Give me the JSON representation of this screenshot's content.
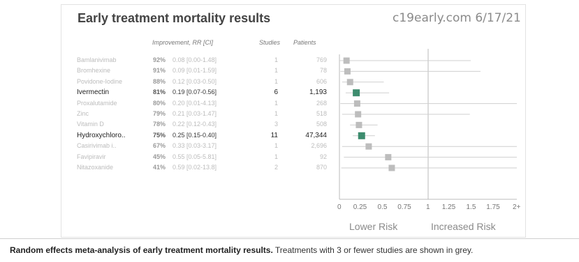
{
  "title": "Early treatment mortality results",
  "source": "c19early.com 6/17/21",
  "headers": {
    "improvement": "Improvement, RR [CI]",
    "studies": "Studies",
    "patients": "Patients"
  },
  "risk_labels": {
    "lower": "Lower Risk",
    "increased": "Increased Risk"
  },
  "caption": {
    "bold": "Random effects meta-analysis of early treatment mortality results.",
    "rest": " Treatments with 3 or fewer studies are shown in grey."
  },
  "colors": {
    "highlight": "#3d8c6e",
    "muted": "#bdbdbd",
    "line": "#cccccc"
  },
  "chart_data": {
    "type": "forest",
    "x_axis": {
      "ticks": [
        "0",
        "0.25",
        "0.5",
        "0.75",
        "1",
        "1.25",
        "1.5",
        "1.75",
        "2+"
      ],
      "range": [
        0,
        2
      ],
      "reference_line": 1
    },
    "rows": [
      {
        "name": "Bamlanivimab",
        "improvement": "92%",
        "rr_text": "0.08 [0.00-1.48]",
        "studies": "1",
        "patients": "769",
        "rr": 0.08,
        "ci_low": 0.0,
        "ci_high": 1.48,
        "highlight": false
      },
      {
        "name": "Bromhexine",
        "improvement": "91%",
        "rr_text": "0.09 [0.01-1.59]",
        "studies": "1",
        "patients": "78",
        "rr": 0.09,
        "ci_low": 0.01,
        "ci_high": 1.59,
        "highlight": false
      },
      {
        "name": "Povidone-Iodine",
        "improvement": "88%",
        "rr_text": "0.12 [0.03-0.50]",
        "studies": "1",
        "patients": "606",
        "rr": 0.12,
        "ci_low": 0.03,
        "ci_high": 0.5,
        "highlight": false
      },
      {
        "name": "Ivermectin",
        "improvement": "81%",
        "rr_text": "0.19 [0.07-0.56]",
        "studies": "6",
        "patients": "1,193",
        "rr": 0.19,
        "ci_low": 0.07,
        "ci_high": 0.56,
        "highlight": true
      },
      {
        "name": "Proxalutamide",
        "improvement": "80%",
        "rr_text": "0.20 [0.01-4.13]",
        "studies": "1",
        "patients": "268",
        "rr": 0.2,
        "ci_low": 0.01,
        "ci_high": 4.13,
        "highlight": false
      },
      {
        "name": "Zinc",
        "improvement": "79%",
        "rr_text": "0.21 [0.03-1.47]",
        "studies": "1",
        "patients": "518",
        "rr": 0.21,
        "ci_low": 0.03,
        "ci_high": 1.47,
        "highlight": false
      },
      {
        "name": "Vitamin D",
        "improvement": "78%",
        "rr_text": "0.22 [0.12-0.43]",
        "studies": "3",
        "patients": "508",
        "rr": 0.22,
        "ci_low": 0.12,
        "ci_high": 0.43,
        "highlight": false
      },
      {
        "name": "Hydroxychloro..",
        "improvement": "75%",
        "rr_text": "0.25 [0.15-0.40]",
        "studies": "11",
        "patients": "47,344",
        "rr": 0.25,
        "ci_low": 0.15,
        "ci_high": 0.4,
        "highlight": true
      },
      {
        "name": "Casirivimab i..",
        "improvement": "67%",
        "rr_text": "0.33 [0.03-3.17]",
        "studies": "1",
        "patients": "2,696",
        "rr": 0.33,
        "ci_low": 0.03,
        "ci_high": 3.17,
        "highlight": false
      },
      {
        "name": "Favipiravir",
        "improvement": "45%",
        "rr_text": "0.55 [0.05-5.81]",
        "studies": "1",
        "patients": "92",
        "rr": 0.55,
        "ci_low": 0.05,
        "ci_high": 5.81,
        "highlight": false
      },
      {
        "name": "Nitazoxanide",
        "improvement": "41%",
        "rr_text": "0.59 [0.02-13.8]",
        "studies": "2",
        "patients": "870",
        "rr": 0.59,
        "ci_low": 0.02,
        "ci_high": 13.8,
        "highlight": false
      }
    ]
  }
}
